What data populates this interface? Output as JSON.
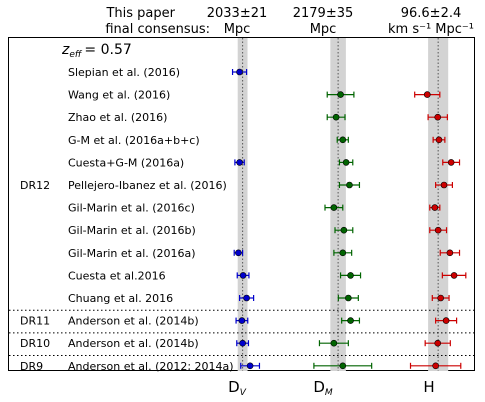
{
  "header": {
    "consensus_label_line1": "This paper",
    "consensus_label_line2": "final consensus:"
  },
  "z_eff_label": "z",
  "z_eff_sub": "eff",
  "z_eff_value": "= 0.57",
  "chart_data": {
    "type": "scatter",
    "title": "",
    "panels": [
      {
        "axis_label": "D",
        "axis_sub": "V",
        "consensus_value": 2033,
        "consensus_err": 21,
        "consensus_line1": "2033±21",
        "consensus_line2": "Mpc",
        "xlim": [
          1915,
          2150
        ],
        "color": "#0000cc"
      },
      {
        "axis_label": "D",
        "axis_sub": "M",
        "consensus_value": 2179,
        "consensus_err": 35,
        "consensus_line1": "2179±35",
        "consensus_line2": "Mpc",
        "xlim": [
          1985,
          2390
        ],
        "color": "#006400"
      },
      {
        "axis_label": "H",
        "axis_sub": "",
        "consensus_value": 96.6,
        "consensus_err": 2.4,
        "consensus_line1": "96.6±2.4",
        "consensus_line2": "km s⁻¹ Mpc⁻¹",
        "xlim": [
          86.3,
          104.2
        ],
        "color": "#cc0000"
      }
    ],
    "groups": [
      {
        "name": "DR12",
        "row_start": 0,
        "row_end": 10
      },
      {
        "name": "DR11",
        "row_start": 11,
        "row_end": 11
      },
      {
        "name": "DR10",
        "row_start": 12,
        "row_end": 12
      },
      {
        "name": "DR9",
        "row_start": 13,
        "row_end": 13
      }
    ],
    "rows": [
      {
        "label": "Slepian et al. (2016)",
        "dv": [
          2020,
          30
        ],
        "dm": null,
        "h": null
      },
      {
        "label": "Wang et al. (2016)",
        "dv": null,
        "dm": [
          2190,
          60
        ],
        "h": [
          94.0,
          3.0
        ]
      },
      {
        "label": "Zhao et al. (2016)",
        "dv": null,
        "dm": [
          2170,
          40
        ],
        "h": [
          96.5,
          2.3
        ]
      },
      {
        "label": "G-M et al. (2016a+b+c)",
        "dv": null,
        "dm": [
          2200,
          25
        ],
        "h": [
          96.8,
          1.4
        ]
      },
      {
        "label": "Cuesta+G-M (2016a)",
        "dv": [
          2020,
          20
        ],
        "dm": [
          2215,
          30
        ],
        "h": [
          99.7,
          2.0
        ]
      },
      {
        "label": "Pellejero-Ibanez et al. (2016)",
        "dv": null,
        "dm": [
          2230,
          45
        ],
        "h": [
          98.0,
          2.0
        ]
      },
      {
        "label": "Gil-Marin et al. (2016c)",
        "dv": null,
        "dm": [
          2160,
          40
        ],
        "h": [
          95.8,
          1.2
        ]
      },
      {
        "label": "Gil-Marin et al. (2016b)",
        "dv": null,
        "dm": [
          2205,
          40
        ],
        "h": [
          96.6,
          2.0
        ]
      },
      {
        "label": "Gil-Marin et al. (2016a)",
        "dv": [
          2015,
          18
        ],
        "dm": [
          2200,
          40
        ],
        "h": [
          99.4,
          2.3
        ]
      },
      {
        "label": "Cuesta et al.2016",
        "dv": [
          2035,
          25
        ],
        "dm": [
          2235,
          45
        ],
        "h": [
          100.4,
          2.8
        ]
      },
      {
        "label": "Chuang et al. 2016",
        "dv": [
          2050,
          30
        ],
        "dm": [
          2225,
          45
        ],
        "h": [
          97.2,
          2.0
        ]
      },
      {
        "label": "Anderson et al. (2014b)",
        "dv": [
          2030,
          25
        ],
        "dm": [
          2235,
          40
        ],
        "h": [
          98.5,
          2.5
        ]
      },
      {
        "label": "Anderson et al. (2014b)",
        "dv": [
          2033,
          25
        ],
        "dm": [
          2160,
          65
        ],
        "h": [
          96.5,
          3.0
        ]
      },
      {
        "label": "Anderson et al. (2012; 2014a)",
        "dv": [
          2065,
          40
        ],
        "dm": [
          2200,
          130
        ],
        "h": [
          96.0,
          6.0
        ]
      }
    ]
  }
}
